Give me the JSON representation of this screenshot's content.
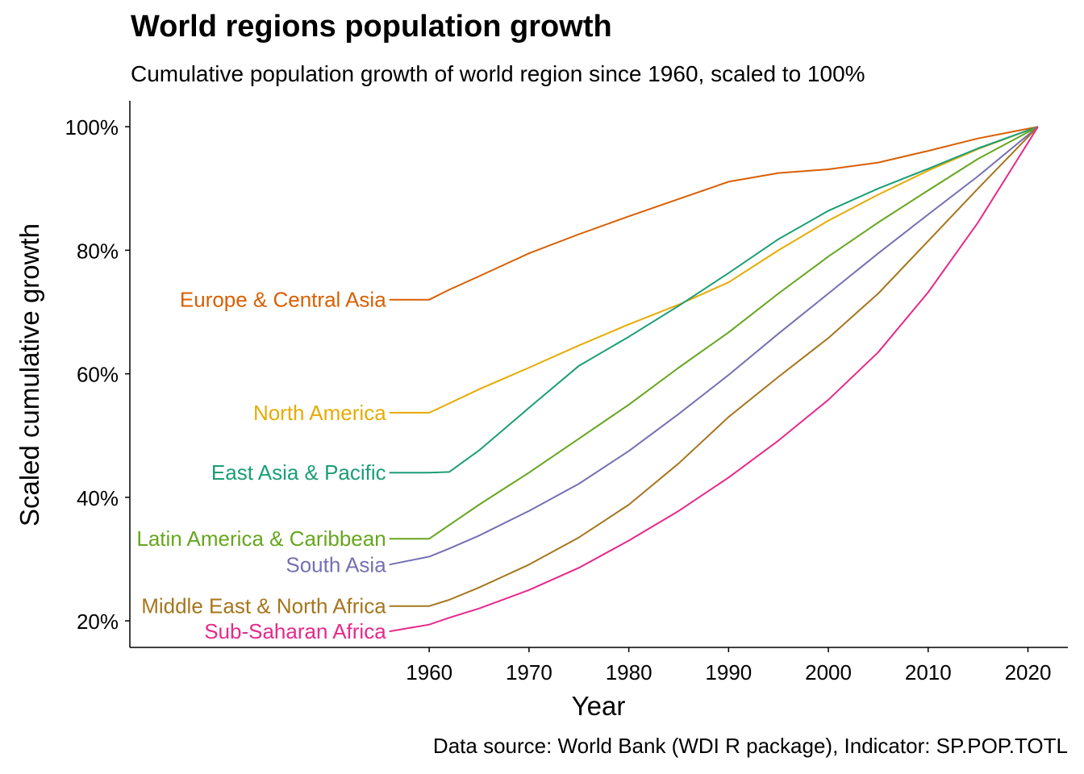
{
  "chart_data": {
    "type": "line",
    "title": "World regions population growth",
    "subtitle": "Cumulative population growth of world region since 1960, scaled to 100%",
    "xlabel": "Year",
    "ylabel": "Scaled cumulative growth",
    "caption": "Data source: World Bank (WDI R package), Indicator: SP.POP.TOTL",
    "xlim": [
      1930,
      2024
    ],
    "ylim": [
      15.7,
      104.2
    ],
    "x_ticks": [
      1960,
      1970,
      1980,
      1990,
      2000,
      2010,
      2020
    ],
    "y_ticks": [
      20,
      40,
      60,
      80,
      100
    ],
    "y_tick_labels": [
      "20%",
      "40%",
      "60%",
      "80%",
      "100%"
    ],
    "grid": false,
    "legend": "direct labels at left of lines",
    "x": [
      1956,
      1960,
      1962,
      1965,
      1970,
      1975,
      1980,
      1985,
      1990,
      1995,
      2000,
      2005,
      2010,
      2015,
      2021
    ],
    "series": [
      {
        "name": "Europe & Central Asia",
        "color": "#D95F02",
        "values": [
          72.0,
          72.0,
          73.6,
          75.8,
          79.5,
          82.6,
          85.5,
          88.3,
          91.1,
          92.5,
          93.1,
          94.2,
          96.1,
          98.1,
          100
        ]
      },
      {
        "name": "North America",
        "color": "#E6AB02",
        "values": [
          53.7,
          53.7,
          55.2,
          57.5,
          61.0,
          64.6,
          68.0,
          71.2,
          74.8,
          80.0,
          84.8,
          89.0,
          92.9,
          96.4,
          100
        ]
      },
      {
        "name": "East Asia & Pacific",
        "color": "#1B9E77",
        "values": [
          44.0,
          44.0,
          44.1,
          47.6,
          54.5,
          61.3,
          66.0,
          71.0,
          76.3,
          81.8,
          86.4,
          90.0,
          93.2,
          96.5,
          100
        ]
      },
      {
        "name": "Latin America & Caribbean",
        "color": "#66A61E",
        "values": [
          33.3,
          33.3,
          35.5,
          38.8,
          44.0,
          49.5,
          55.0,
          61.0,
          66.7,
          73.0,
          79.0,
          84.5,
          89.7,
          94.8,
          100
        ]
      },
      {
        "name": "South Asia",
        "color": "#7570B3",
        "values": [
          29.1,
          30.4,
          31.7,
          33.8,
          37.8,
          42.2,
          47.5,
          53.5,
          59.8,
          66.5,
          73.0,
          79.5,
          85.8,
          92.0,
          100
        ]
      },
      {
        "name": "Middle East & North Africa",
        "color": "#A6761D",
        "values": [
          22.4,
          22.4,
          23.4,
          25.4,
          29.1,
          33.5,
          38.8,
          45.5,
          53.0,
          59.5,
          65.8,
          73.0,
          81.5,
          90.0,
          100
        ]
      },
      {
        "name": "Sub-Saharan Africa",
        "color": "#E7298A",
        "values": [
          18.3,
          19.4,
          20.5,
          22.0,
          25.0,
          28.6,
          33.0,
          37.8,
          43.2,
          49.2,
          55.8,
          63.5,
          73.2,
          84.5,
          100
        ]
      }
    ]
  }
}
